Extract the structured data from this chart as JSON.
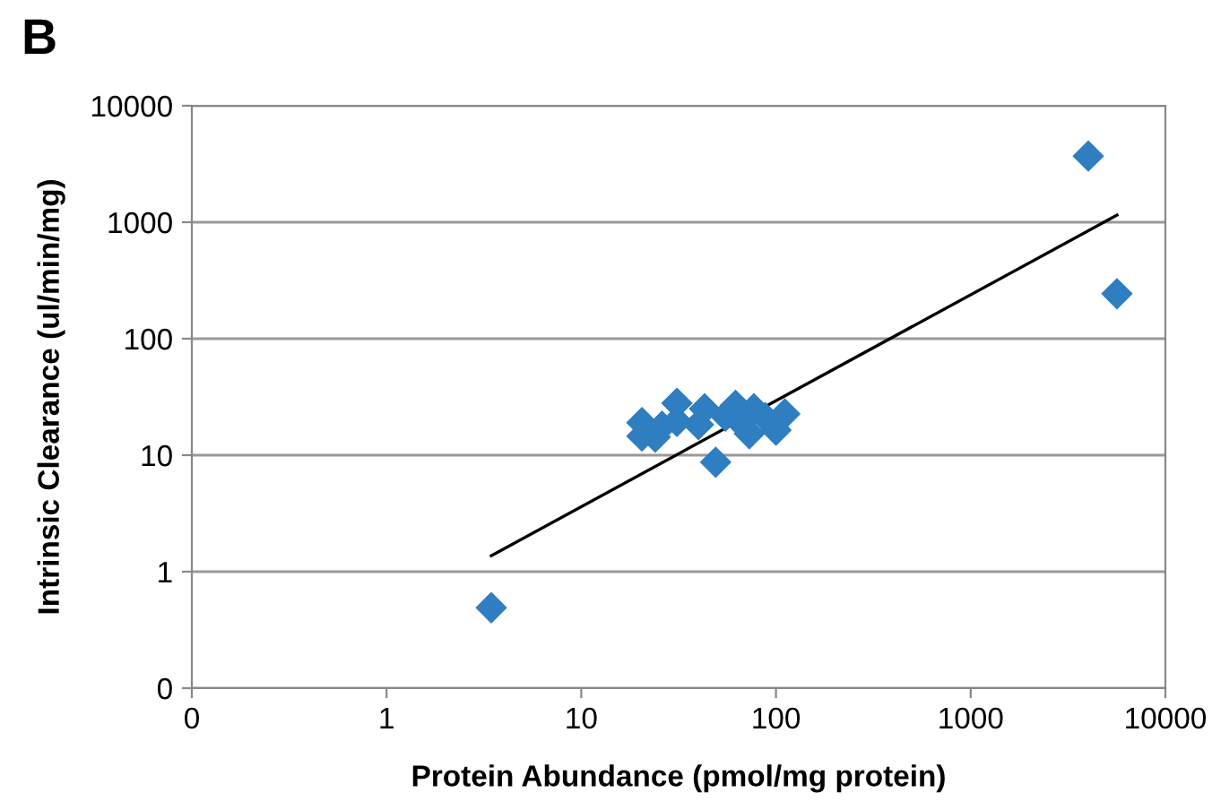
{
  "chart_data": {
    "type": "scatter",
    "title": "B",
    "xlabel": "Protein Abundance (pmol/mg protein)",
    "ylabel": "Intrinsic Clearance (ul/min/mg)",
    "log": "xy",
    "grid": "y",
    "marker": "diamond",
    "xlim": [
      0.1,
      10000
    ],
    "ylim": [
      0.1,
      10000
    ],
    "xticks": [
      {
        "value": 0.1,
        "label": "0"
      },
      1,
      10,
      100,
      1000,
      10000
    ],
    "yticks": [
      {
        "value": 0.1,
        "label": "0"
      },
      1,
      10,
      100,
      1000,
      10000
    ],
    "series": [
      {
        "color": "#2e7ec1",
        "x": [
          20.5,
          20.5,
          24,
          26,
          31,
          31,
          36,
          40,
          43,
          49,
          55,
          62,
          66,
          73,
          77,
          88,
          100,
          111,
          3.45,
          4020,
          5640
        ],
        "values": [
          19,
          14.6,
          14.3,
          17.7,
          19.5,
          27.9,
          null,
          18.3,
          25,
          8.7,
          21.7,
          26.8,
          19,
          15.3,
          25,
          21,
          16.4,
          22.6,
          0.49,
          3700,
          243
        ]
      },
      {
        "type": "line",
        "color": "#000000",
        "marker": "none",
        "line_style": "solid",
        "x": [
          3.45,
          5640
        ],
        "values": [
          1.37,
          1150
        ]
      }
    ]
  }
}
